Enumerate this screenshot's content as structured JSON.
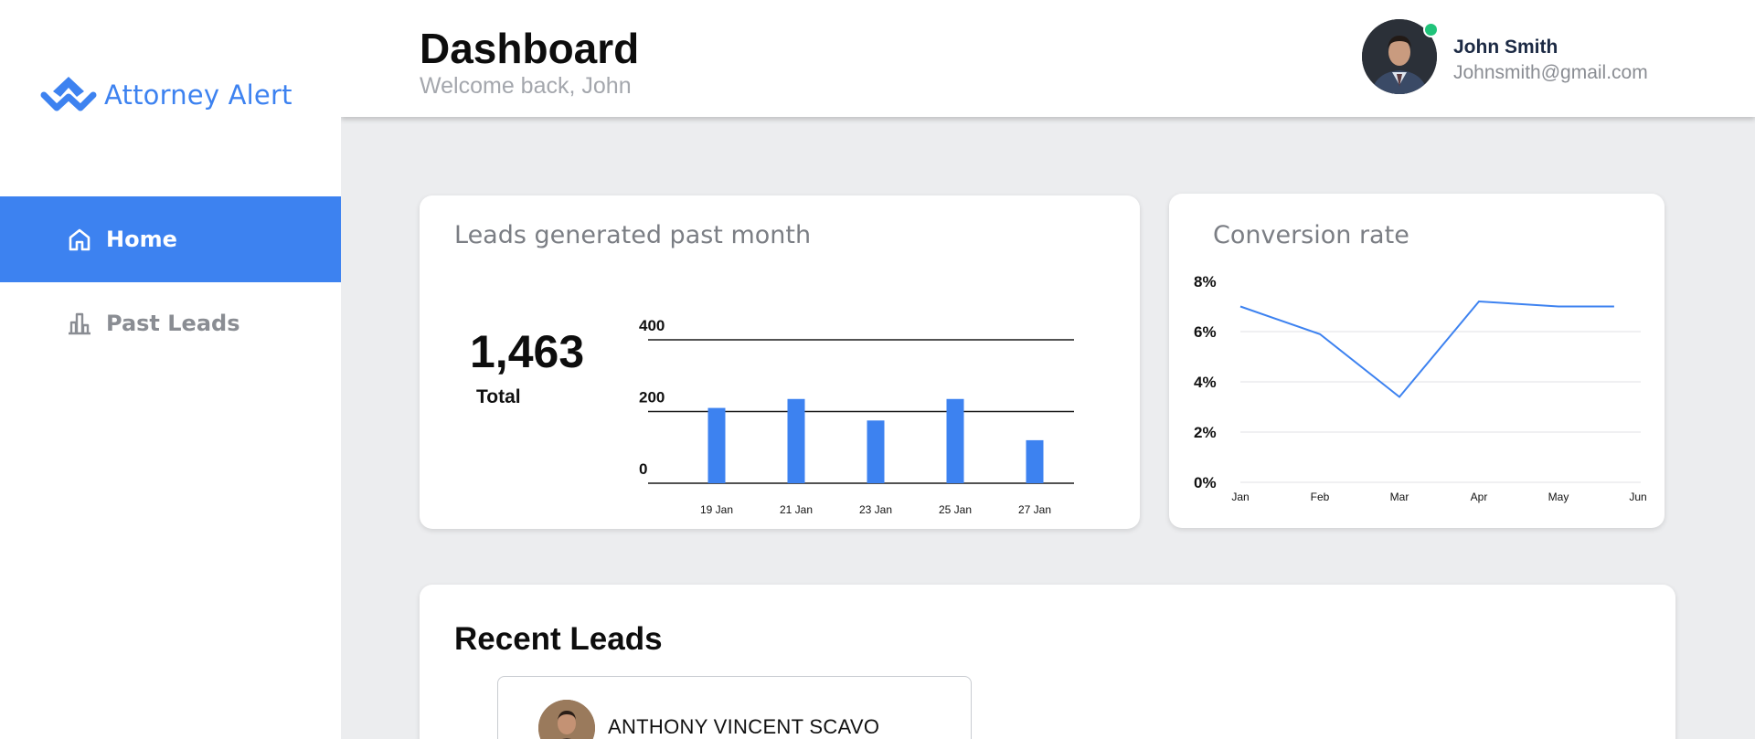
{
  "app": {
    "name": "Attorney Alert",
    "brand_color": "#3d82f0"
  },
  "sidebar": {
    "items": [
      {
        "label": "Home",
        "icon": "home-icon",
        "active": true
      },
      {
        "label": "Past Leads",
        "icon": "bar-chart-icon",
        "active": false
      }
    ]
  },
  "header": {
    "title": "Dashboard",
    "subtitle": "Welcome back, John",
    "user": {
      "name": "John Smith",
      "email": "Johnsmith@gmail.com",
      "status_color": "#21c37a"
    }
  },
  "leads_card": {
    "title": "Leads generated past month",
    "total_value": "1,463",
    "total_label": "Total"
  },
  "conversion_card": {
    "title": "Conversion rate"
  },
  "recent_leads": {
    "title": "Recent Leads",
    "items": [
      {
        "name": "ANTHONY VINCENT SCAVO"
      }
    ]
  },
  "chart_data": [
    {
      "type": "bar",
      "title": "Leads generated past month",
      "categories": [
        "19 Jan",
        "21 Jan",
        "23 Jan",
        "25 Jan",
        "27 Jan"
      ],
      "values": [
        210,
        235,
        175,
        235,
        120
      ],
      "yticks": [
        "0",
        "200",
        "400"
      ],
      "ylim": [
        0,
        400
      ],
      "bar_color": "#3d82f0",
      "grid": true
    },
    {
      "type": "line",
      "title": "Conversion rate",
      "categories": [
        "Jan",
        "Feb",
        "Mar",
        "Apr",
        "May",
        "Jun"
      ],
      "x": [
        0,
        1,
        2,
        3,
        4,
        4.7
      ],
      "values": [
        7.0,
        5.9,
        3.4,
        7.2,
        7.0,
        7.0
      ],
      "yticks": [
        "0%",
        "2%",
        "4%",
        "6%",
        "8%"
      ],
      "ylim": [
        0,
        8
      ],
      "line_color": "#3d82f0",
      "grid": true
    }
  ]
}
